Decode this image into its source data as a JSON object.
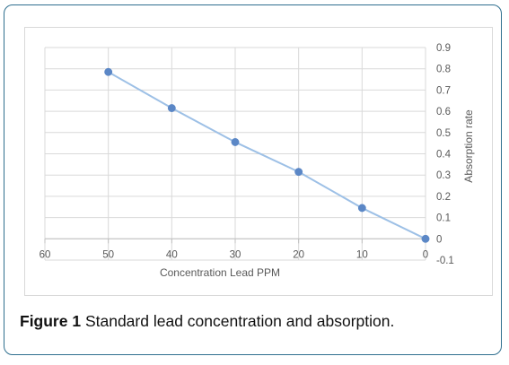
{
  "figure": {
    "label": "Figure 1",
    "caption": "Standard lead concentration and absorption."
  },
  "chart_data": {
    "type": "line",
    "x": [
      50,
      40,
      30,
      20,
      10,
      0
    ],
    "series": [
      {
        "values": [
          0.785,
          0.615,
          0.455,
          0.315,
          0.145,
          0.0
        ],
        "color": "#5b87c6",
        "line_color": "#9dc0e6"
      }
    ],
    "xlabel": "Concentration Lead PPM",
    "ylabel": "Absorption rate",
    "xlim": [
      60,
      0
    ],
    "x_reversed": true,
    "ylim": [
      -0.1,
      0.9
    ],
    "x_ticks": [
      60,
      50,
      40,
      30,
      20,
      10,
      0
    ],
    "y_ticks": [
      -0.1,
      0,
      0.1,
      0.2,
      0.3,
      0.4,
      0.5,
      0.6,
      0.7,
      0.8,
      0.9
    ],
    "y_tick_labels": [
      "-0.1",
      "0",
      "0.1",
      "0.2",
      "0.3",
      "0.4",
      "0.5",
      "0.6",
      "0.7",
      "0.8",
      "0.9"
    ],
    "x_tick_labels": [
      "60",
      "50",
      "40",
      "30",
      "20",
      "10",
      "0"
    ],
    "y_axis_position": "right",
    "grid": true,
    "legend": false,
    "colors": {
      "grid": "#d9d9d9",
      "axis": "#bfbfbf",
      "tick_text": "#595959"
    }
  }
}
